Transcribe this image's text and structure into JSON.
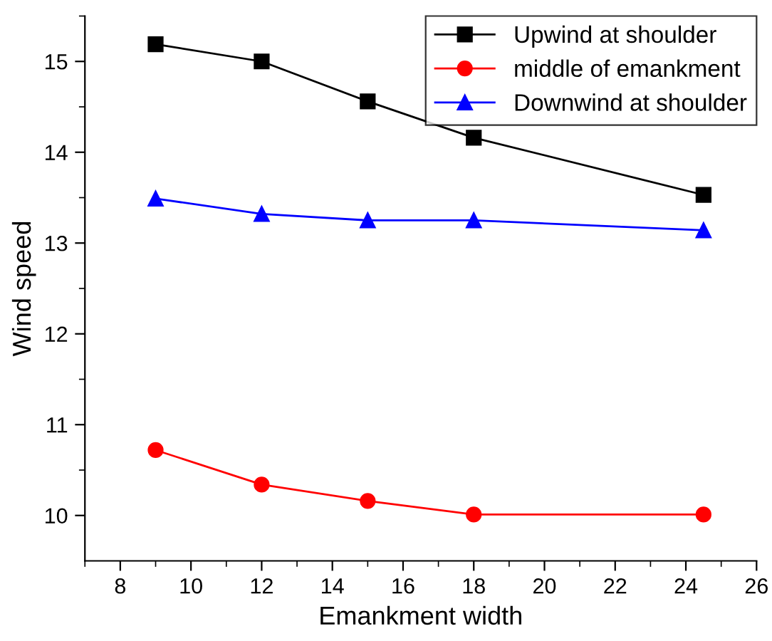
{
  "chart_data": {
    "type": "line",
    "xlabel": "Emankment width",
    "ylabel": "Wind speed",
    "x": [
      9,
      12,
      15,
      18,
      24.5
    ],
    "series": [
      {
        "name": "Upwind at shoulder",
        "color": "#000000",
        "marker": "square",
        "values": [
          15.19,
          15.0,
          14.56,
          14.16,
          13.53
        ]
      },
      {
        "name": "middle of emankment",
        "color": "#ff0000",
        "marker": "circle",
        "values": [
          10.72,
          10.34,
          10.16,
          10.01,
          10.01
        ]
      },
      {
        "name": "Downwind at shoulder",
        "color": "#0000ff",
        "marker": "triangle",
        "values": [
          13.49,
          13.32,
          13.25,
          13.25,
          13.14
        ]
      }
    ],
    "xlim": [
      7,
      26
    ],
    "xticks": [
      8,
      10,
      12,
      14,
      16,
      18,
      20,
      22,
      24,
      26
    ],
    "ylim": [
      9.5,
      15.5
    ],
    "yticks": [
      10,
      11,
      12,
      13,
      14,
      15
    ],
    "grid": false,
    "legend": "top right",
    "line_style": "solid"
  }
}
